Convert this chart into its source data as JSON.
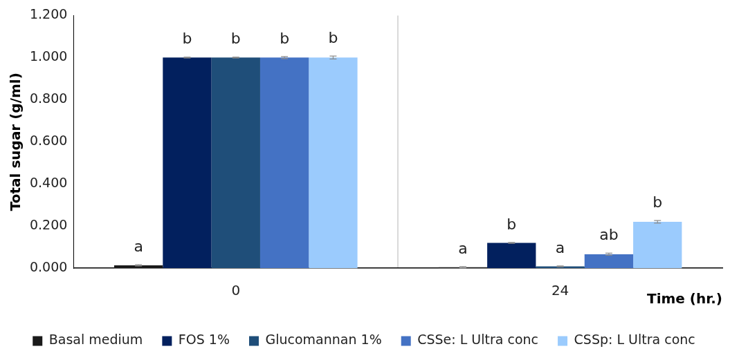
{
  "chart_data": {
    "type": "bar",
    "xlabel": "Time (hr.)",
    "ylabel": "Total sugar (g/ml)",
    "categories": [
      "0",
      "24"
    ],
    "series": [
      {
        "name": "Basal medium",
        "color": "#1a1a1a",
        "values": [
          0.013,
          0.004
        ],
        "errors": [
          0.003,
          0.003
        ],
        "value_labels": [
          "a",
          "a"
        ]
      },
      {
        "name": "FOS 1%",
        "color": "#02205e",
        "values": [
          1.0,
          0.12
        ],
        "errors": [
          0.002,
          0.002
        ],
        "value_labels": [
          "b",
          "b"
        ]
      },
      {
        "name": "Glucomannan 1%",
        "color": "#1f4e79",
        "values": [
          1.0,
          0.008
        ],
        "errors": [
          0.002,
          0.002
        ],
        "value_labels": [
          "b",
          "a"
        ]
      },
      {
        "name": "CSSe: L Ultra conc",
        "color": "#4472c4",
        "values": [
          1.0,
          0.066
        ],
        "errors": [
          0.005,
          0.005
        ],
        "value_labels": [
          "b",
          "ab"
        ]
      },
      {
        "name": "CSSp: L Ultra conc",
        "color": "#9bcbfd",
        "values": [
          1.0,
          0.22
        ],
        "errors": [
          0.007,
          0.006
        ],
        "value_labels": [
          "b",
          "b"
        ]
      }
    ],
    "ylim": [
      0,
      1.2
    ],
    "yticks": [
      {
        "value": 0,
        "label": "0.000"
      },
      {
        "value": 0.2,
        "label": "0.200"
      },
      {
        "value": 0.4,
        "label": "0.400"
      },
      {
        "value": 0.6,
        "label": "0.600"
      },
      {
        "value": 0.8,
        "label": "0.800"
      },
      {
        "value": 1.0,
        "label": "1.000"
      },
      {
        "value": 1.2,
        "label": "1.200"
      }
    ],
    "grid": "x",
    "legend": "bottom"
  }
}
